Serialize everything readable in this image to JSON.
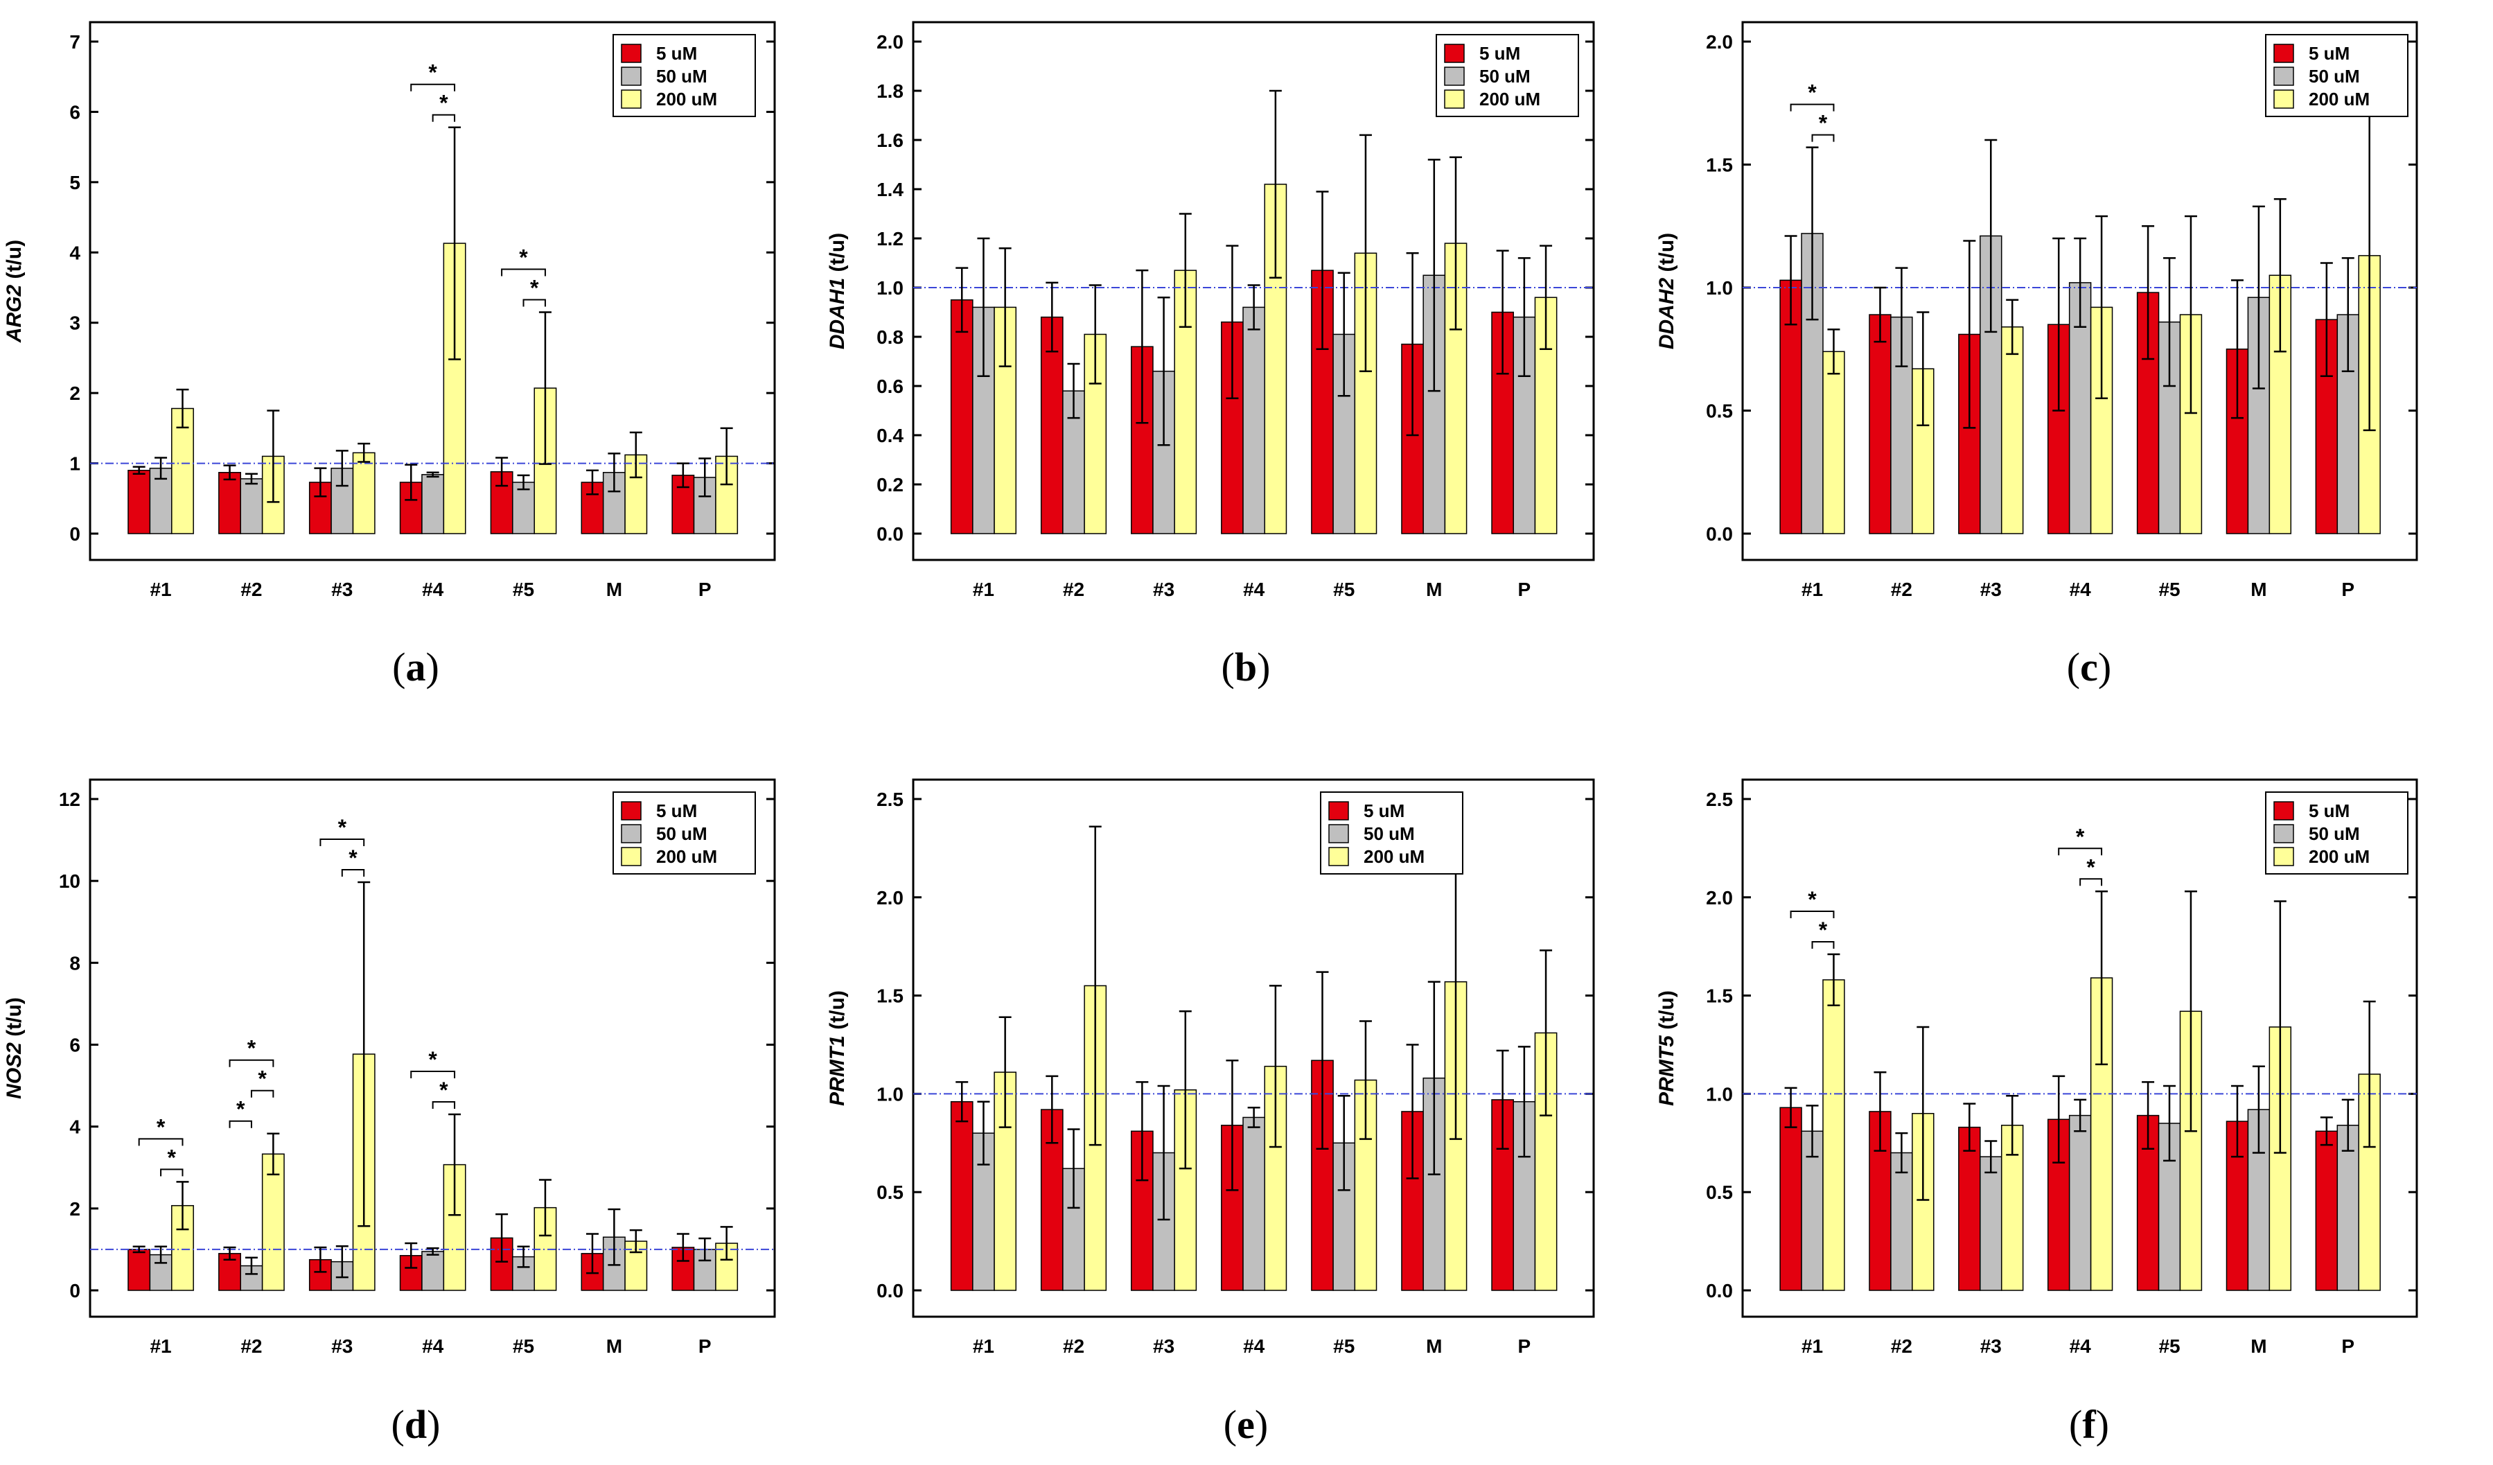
{
  "legend": {
    "labels": [
      "5 uM",
      "50 uM",
      "200 uM"
    ],
    "colors": [
      "#e3000f",
      "#bfbfbf",
      "#ffff99"
    ]
  },
  "ref_line_color": "#3b46d8",
  "categories": [
    "#1",
    "#2",
    "#3",
    "#4",
    "#5",
    "M",
    "P"
  ],
  "chart_data": [
    {
      "type": "bar",
      "panel_label": "(a)",
      "ylabel_gene": "ARG2",
      "ylabel_unit": "(t/u)",
      "ylim": [
        0,
        7
      ],
      "yticks": [
        0,
        1,
        2,
        3,
        4,
        5,
        6,
        7
      ],
      "ref_line": 1,
      "legend_position": "top-right",
      "series": [
        {
          "name": "5 uM",
          "values": [
            0.9,
            0.87,
            0.73,
            0.73,
            0.88,
            0.73,
            0.83
          ],
          "errors": [
            0.05,
            0.1,
            0.2,
            0.25,
            0.2,
            0.17,
            0.17
          ]
        },
        {
          "name": "50 uM",
          "values": [
            0.93,
            0.78,
            0.93,
            0.84,
            0.73,
            0.87,
            0.8
          ],
          "errors": [
            0.15,
            0.07,
            0.25,
            0.03,
            0.1,
            0.27,
            0.27
          ]
        },
        {
          "name": "200 uM",
          "values": [
            1.78,
            1.1,
            1.15,
            4.13,
            2.07,
            1.12,
            1.1
          ],
          "errors": [
            0.27,
            0.65,
            0.13,
            1.65,
            1.08,
            0.32,
            0.4
          ]
        }
      ],
      "significance": [
        {
          "category": "#4",
          "from": "5 uM",
          "to": "200 uM",
          "label": "*"
        },
        {
          "category": "#4",
          "from": "50 uM",
          "to": "200 uM",
          "label": "*"
        },
        {
          "category": "#5",
          "from": "5 uM",
          "to": "200 uM",
          "label": "*"
        },
        {
          "category": "#5",
          "from": "50 uM",
          "to": "200 uM",
          "label": "*"
        }
      ]
    },
    {
      "type": "bar",
      "panel_label": "(b)",
      "ylabel_gene": "DDAH1",
      "ylabel_unit": "(t/u)",
      "ylim": [
        0,
        2.0
      ],
      "yticks": [
        "0.0",
        "0.2",
        "0.4",
        "0.6",
        "0.8",
        "1.0",
        "1.2",
        "1.4",
        "1.6",
        "1.8",
        "2.0"
      ],
      "ref_line": 1,
      "legend_position": "top-right",
      "series": [
        {
          "name": "5 uM",
          "values": [
            0.95,
            0.88,
            0.76,
            0.86,
            1.07,
            0.77,
            0.9
          ],
          "errors": [
            0.13,
            0.14,
            0.31,
            0.31,
            0.32,
            0.37,
            0.25
          ]
        },
        {
          "name": "50 uM",
          "values": [
            0.92,
            0.58,
            0.66,
            0.92,
            0.81,
            1.05,
            0.88
          ],
          "errors": [
            0.28,
            0.11,
            0.3,
            0.09,
            0.25,
            0.47,
            0.24
          ]
        },
        {
          "name": "200 uM",
          "values": [
            0.92,
            0.81,
            1.07,
            1.42,
            1.14,
            1.18,
            0.96
          ],
          "errors": [
            0.24,
            0.2,
            0.23,
            0.38,
            0.48,
            0.35,
            0.21
          ]
        }
      ],
      "significance": []
    },
    {
      "type": "bar",
      "panel_label": "(c)",
      "ylabel_gene": "DDAH2",
      "ylabel_unit": "(t/u)",
      "ylim": [
        0,
        2.0
      ],
      "yticks": [
        "0.0",
        "0.5",
        "1.0",
        "1.5",
        "2.0"
      ],
      "ref_line": 1,
      "legend_position": "top-right",
      "series": [
        {
          "name": "5 uM",
          "values": [
            1.03,
            0.89,
            0.81,
            0.85,
            0.98,
            0.75,
            0.87
          ],
          "errors": [
            0.18,
            0.11,
            0.38,
            0.35,
            0.27,
            0.28,
            0.23
          ]
        },
        {
          "name": "50 uM",
          "values": [
            1.22,
            0.88,
            1.21,
            1.02,
            0.86,
            0.96,
            0.89
          ],
          "errors": [
            0.35,
            0.2,
            0.39,
            0.18,
            0.26,
            0.37,
            0.23
          ]
        },
        {
          "name": "200 uM",
          "values": [
            0.74,
            0.67,
            0.84,
            0.92,
            0.89,
            1.05,
            1.13
          ],
          "errors": [
            0.09,
            0.23,
            0.11,
            0.37,
            0.4,
            0.31,
            0.71
          ]
        }
      ],
      "significance": [
        {
          "category": "#1",
          "from": "5 uM",
          "to": "200 uM",
          "label": "*"
        },
        {
          "category": "#1",
          "from": "50 uM",
          "to": "200 uM",
          "label": "*"
        }
      ]
    },
    {
      "type": "bar",
      "panel_label": "(d)",
      "ylabel_gene": "NOS2",
      "ylabel_unit": "(t/u)",
      "ylim": [
        0,
        12
      ],
      "yticks": [
        0,
        2,
        4,
        6,
        8,
        10,
        12
      ],
      "ref_line": 1,
      "legend_position": "top-right",
      "series": [
        {
          "name": "5 uM",
          "values": [
            1.0,
            0.9,
            0.75,
            0.85,
            1.28,
            0.9,
            1.05
          ],
          "errors": [
            0.07,
            0.15,
            0.3,
            0.3,
            0.58,
            0.48,
            0.33
          ]
        },
        {
          "name": "50 uM",
          "values": [
            0.87,
            0.6,
            0.7,
            0.95,
            0.82,
            1.3,
            1.0
          ],
          "errors": [
            0.2,
            0.2,
            0.38,
            0.08,
            0.25,
            0.68,
            0.27
          ]
        },
        {
          "name": "200 uM",
          "values": [
            2.07,
            3.33,
            5.77,
            3.07,
            2.02,
            1.2,
            1.15
          ],
          "errors": [
            0.58,
            0.5,
            4.2,
            1.23,
            0.68,
            0.27,
            0.4
          ]
        }
      ],
      "significance": [
        {
          "category": "#1",
          "from": "5 uM",
          "to": "200 uM",
          "label": "*"
        },
        {
          "category": "#1",
          "from": "50 uM",
          "to": "200 uM",
          "label": "*"
        },
        {
          "category": "#2",
          "from": "5 uM",
          "to": "50 uM",
          "label": "*"
        },
        {
          "category": "#2",
          "from": "5 uM",
          "to": "200 uM",
          "label": "*"
        },
        {
          "category": "#2",
          "from": "50 uM",
          "to": "200 uM",
          "label": "*"
        },
        {
          "category": "#3",
          "from": "5 uM",
          "to": "200 uM",
          "label": "*"
        },
        {
          "category": "#3",
          "from": "50 uM",
          "to": "200 uM",
          "label": "*"
        },
        {
          "category": "#4",
          "from": "5 uM",
          "to": "200 uM",
          "label": "*"
        },
        {
          "category": "#4",
          "from": "50 uM",
          "to": "200 uM",
          "label": "*"
        }
      ]
    },
    {
      "type": "bar",
      "panel_label": "(e)",
      "ylabel_gene": "PRMT1",
      "ylabel_unit": "(t/u)",
      "ylim": [
        0,
        2.5
      ],
      "yticks": [
        "0.0",
        "0.5",
        "1.0",
        "1.5",
        "2.0",
        "2.5"
      ],
      "ref_line": 1,
      "legend_position": "top-center",
      "series": [
        {
          "name": "5 uM",
          "values": [
            0.96,
            0.92,
            0.81,
            0.84,
            1.17,
            0.91,
            0.97
          ],
          "errors": [
            0.1,
            0.17,
            0.25,
            0.33,
            0.45,
            0.34,
            0.25
          ]
        },
        {
          "name": "50 uM",
          "values": [
            0.8,
            0.62,
            0.7,
            0.88,
            0.75,
            1.08,
            0.96
          ],
          "errors": [
            0.16,
            0.2,
            0.34,
            0.05,
            0.24,
            0.49,
            0.28
          ]
        },
        {
          "name": "200 uM",
          "values": [
            1.11,
            1.55,
            1.02,
            1.14,
            1.07,
            1.57,
            1.31
          ],
          "errors": [
            0.28,
            0.81,
            0.4,
            0.41,
            0.3,
            0.8,
            0.42
          ]
        }
      ],
      "significance": []
    },
    {
      "type": "bar",
      "panel_label": "(f)",
      "ylabel_gene": "PRMT5",
      "ylabel_unit": "(t/u)",
      "ylim": [
        0,
        2.5
      ],
      "yticks": [
        "0.0",
        "0.5",
        "1.0",
        "1.5",
        "2.0",
        "2.5"
      ],
      "ref_line": 1,
      "legend_position": "top-right",
      "series": [
        {
          "name": "5 uM",
          "values": [
            0.93,
            0.91,
            0.83,
            0.87,
            0.89,
            0.86,
            0.81
          ],
          "errors": [
            0.1,
            0.2,
            0.12,
            0.22,
            0.17,
            0.18,
            0.07
          ]
        },
        {
          "name": "50 uM",
          "values": [
            0.81,
            0.7,
            0.68,
            0.89,
            0.85,
            0.92,
            0.84
          ],
          "errors": [
            0.13,
            0.1,
            0.08,
            0.08,
            0.19,
            0.22,
            0.13
          ]
        },
        {
          "name": "200 uM",
          "values": [
            1.58,
            0.9,
            0.84,
            1.59,
            1.42,
            1.34,
            1.1
          ],
          "errors": [
            0.13,
            0.44,
            0.15,
            0.44,
            0.61,
            0.64,
            0.37
          ]
        }
      ],
      "significance": [
        {
          "category": "#1",
          "from": "5 uM",
          "to": "200 uM",
          "label": "*"
        },
        {
          "category": "#1",
          "from": "50 uM",
          "to": "200 uM",
          "label": "*"
        },
        {
          "category": "#4",
          "from": "5 uM",
          "to": "200 uM",
          "label": "*"
        },
        {
          "category": "#4",
          "from": "50 uM",
          "to": "200 uM",
          "label": "*"
        }
      ]
    }
  ]
}
